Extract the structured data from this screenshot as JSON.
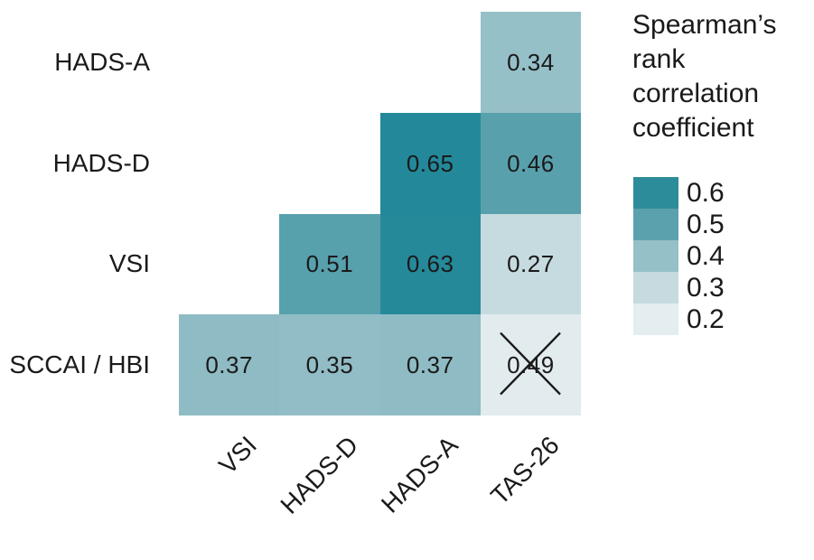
{
  "chart_data": {
    "type": "heatmap",
    "subtype": "lower-triangular-correlation-matrix",
    "rows": [
      "HADS-A",
      "HADS-D",
      "VSI",
      "SCCAI / HBI"
    ],
    "columns": [
      "VSI",
      "HADS-D",
      "HADS-A",
      "TAS-26"
    ],
    "cells": [
      {
        "row": "HADS-A",
        "column": "TAS-26",
        "value": 0.34,
        "label": "0.34",
        "color": "#96C0C8",
        "crossed": false
      },
      {
        "row": "HADS-D",
        "column": "HADS-A",
        "value": 0.65,
        "label": "0.65",
        "color": "#23899A",
        "crossed": false
      },
      {
        "row": "HADS-D",
        "column": "TAS-26",
        "value": 0.46,
        "label": "0.46",
        "color": "#58A1AC",
        "crossed": false
      },
      {
        "row": "VSI",
        "column": "HADS-D",
        "value": 0.51,
        "label": "0.51",
        "color": "#57A1AD",
        "crossed": false
      },
      {
        "row": "VSI",
        "column": "HADS-A",
        "value": 0.63,
        "label": "0.63",
        "color": "#26899A",
        "crossed": false
      },
      {
        "row": "VSI",
        "column": "TAS-26",
        "value": 0.27,
        "label": "0.27",
        "color": "#C6DBDF",
        "crossed": false
      },
      {
        "row": "SCCAI / HBI",
        "column": "VSI",
        "value": 0.37,
        "label": "0.37",
        "color": "#8FBBC4",
        "crossed": false
      },
      {
        "row": "SCCAI / HBI",
        "column": "HADS-D",
        "value": 0.35,
        "label": "0.35",
        "color": "#92BDC6",
        "crossed": false
      },
      {
        "row": "SCCAI / HBI",
        "column": "HADS-A",
        "value": 0.37,
        "label": "0.37",
        "color": "#8FBBC4",
        "crossed": false
      },
      {
        "row": "SCCAI / HBI",
        "column": "TAS-26",
        "value": 0.49,
        "label": "0.49",
        "color": "#E2EBEE",
        "crossed": true
      }
    ],
    "legend": {
      "title": "Spearman’s rank correlation coefficient",
      "position": "right",
      "entries": [
        {
          "label": "0.6",
          "color": "#2D8C99"
        },
        {
          "label": "0.5",
          "color": "#5AA1AD"
        },
        {
          "label": "0.4",
          "color": "#95C0C8"
        },
        {
          "label": "0.3",
          "color": "#C6DAE0"
        },
        {
          "label": "0.2",
          "color": "#E4EDEF"
        }
      ]
    },
    "grid_lines": false,
    "axis_label_rotation_deg": -45,
    "text_color": "#1a1a1a",
    "cross_mark_color": "#1a1a1a"
  }
}
